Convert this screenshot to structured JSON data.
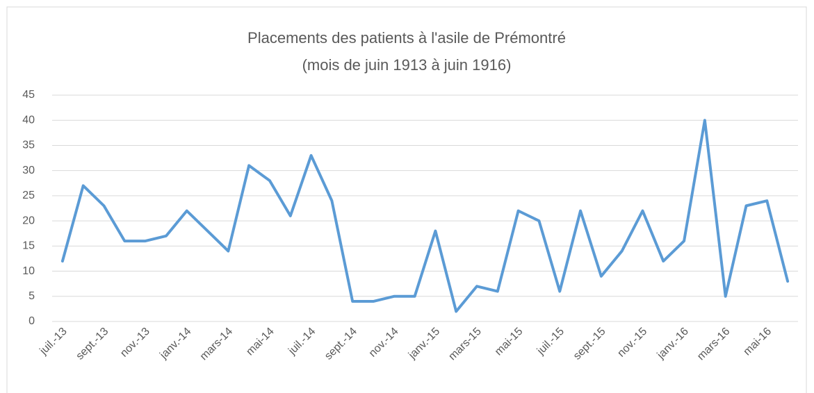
{
  "chart_data": {
    "type": "line",
    "title": "Placements des patients à l'asile de Prémontré",
    "subtitle": "(mois de juin 1913 à juin 1916)",
    "categories": [
      "juil.-13",
      null,
      "sept.-13",
      null,
      "nov.-13",
      null,
      "janv.-14",
      null,
      "mars-14",
      null,
      "mai-14",
      null,
      "juil.-14",
      null,
      "sept.-14",
      null,
      "nov.-14",
      null,
      "janv.-15",
      null,
      "mars-15",
      null,
      "mai-15",
      null,
      "juil.-15",
      null,
      "sept.-15",
      null,
      "nov.-15",
      null,
      "janv.-16",
      null,
      "mars-16",
      null,
      "mai-16",
      null
    ],
    "series": [
      {
        "color": "#5b9bd5",
        "values": [
          12,
          27,
          23,
          16,
          16,
          17,
          22,
          18,
          14,
          31,
          28,
          21,
          33,
          24,
          4,
          4,
          5,
          5,
          18,
          2,
          7,
          6,
          22,
          20,
          6,
          22,
          9,
          14,
          22,
          12,
          16,
          40,
          5,
          23,
          24,
          8
        ]
      }
    ],
    "ylim": [
      0,
      45
    ],
    "yticks": [
      0,
      5,
      10,
      15,
      20,
      25,
      30,
      35,
      40,
      45
    ],
    "grid": true
  }
}
